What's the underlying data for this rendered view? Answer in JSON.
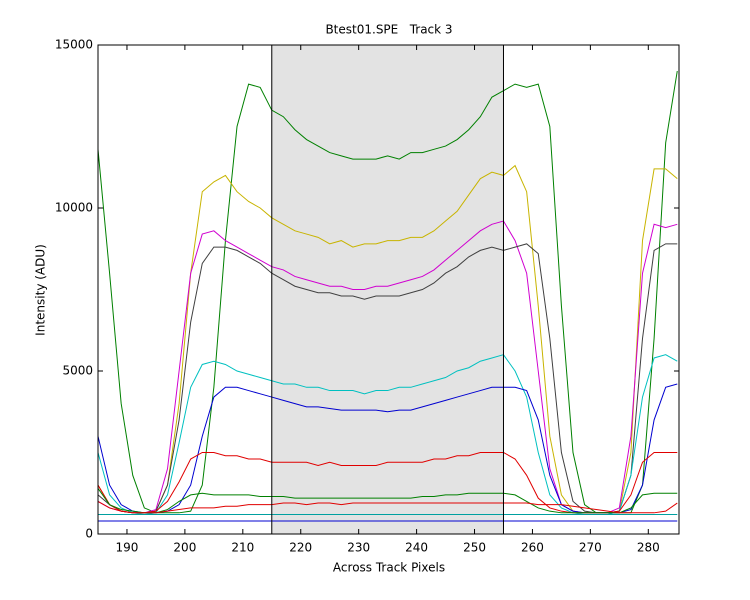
{
  "chart_data": {
    "type": "line",
    "title": "Btest01.SPE   Track 3",
    "x_label": "Across Track Pixels",
    "y_label": "Intensity (ADU)",
    "xlim": [
      185,
      285.3
    ],
    "ylim": [
      0,
      15000
    ],
    "xticks": [
      190,
      200,
      210,
      220,
      230,
      240,
      250,
      260,
      270,
      280
    ],
    "yticks": [
      0,
      5000,
      10000,
      15000
    ],
    "shaded_region": [
      215,
      255
    ],
    "shaded_color": "#e3e3e3",
    "x": [
      185,
      187,
      189,
      191,
      193,
      195,
      197,
      199,
      201,
      203,
      205,
      207,
      209,
      211,
      213,
      215,
      217,
      219,
      221,
      223,
      225,
      227,
      229,
      231,
      233,
      235,
      237,
      239,
      241,
      243,
      245,
      247,
      249,
      251,
      253,
      255,
      257,
      259,
      261,
      263,
      265,
      267,
      269,
      271,
      273,
      275,
      277,
      279,
      281,
      283,
      285
    ],
    "series": [
      {
        "color": "#008000",
        "values": [
          11800,
          8000,
          4000,
          1800,
          800,
          650,
          650,
          650,
          700,
          1500,
          4500,
          9000,
          12500,
          13800,
          13700,
          13000,
          12800,
          12400,
          12100,
          11900,
          11700,
          11600,
          11500,
          11500,
          11500,
          11600,
          11500,
          11700,
          11700,
          11800,
          11900,
          12100,
          12400,
          12800,
          13400,
          13600,
          13800,
          13700,
          13800,
          12500,
          7000,
          2500,
          900,
          650,
          650,
          650,
          650,
          1500,
          6000,
          12000,
          14200
        ]
      },
      {
        "color": "#c8b400",
        "values": [
          1500,
          900,
          700,
          650,
          650,
          700,
          1500,
          4000,
          8000,
          10500,
          10800,
          11000,
          10500,
          10200,
          10000,
          9700,
          9500,
          9300,
          9200,
          9100,
          8900,
          9000,
          8800,
          8900,
          8900,
          9000,
          9000,
          9100,
          9100,
          9300,
          9600,
          9900,
          10400,
          10900,
          11100,
          11000,
          11300,
          10500,
          7000,
          3000,
          1200,
          700,
          650,
          650,
          650,
          700,
          2500,
          9000,
          11200,
          11200,
          10900
        ]
      },
      {
        "color": "#d000d0",
        "values": [
          1000,
          800,
          700,
          650,
          650,
          750,
          2000,
          5000,
          8000,
          9200,
          9300,
          9000,
          8800,
          8600,
          8400,
          8200,
          8100,
          7900,
          7800,
          7700,
          7600,
          7600,
          7500,
          7500,
          7600,
          7600,
          7700,
          7800,
          7900,
          8100,
          8400,
          8700,
          9000,
          9300,
          9500,
          9600,
          9000,
          8000,
          5000,
          2000,
          900,
          700,
          650,
          650,
          650,
          800,
          3000,
          8000,
          9500,
          9400,
          9500
        ]
      },
      {
        "color": "#404040",
        "values": [
          1200,
          900,
          700,
          650,
          650,
          700,
          1500,
          3500,
          6500,
          8300,
          8800,
          8800,
          8700,
          8500,
          8300,
          8000,
          7800,
          7600,
          7500,
          7400,
          7400,
          7300,
          7300,
          7200,
          7300,
          7300,
          7300,
          7400,
          7500,
          7700,
          8000,
          8200,
          8500,
          8700,
          8800,
          8700,
          8800,
          8900,
          8600,
          6000,
          2500,
          1000,
          700,
          650,
          650,
          700,
          1800,
          6000,
          8700,
          8900,
          8900
        ]
      },
      {
        "color": "#00c0c0",
        "values": [
          2500,
          1200,
          800,
          650,
          600,
          650,
          1200,
          2800,
          4500,
          5200,
          5300,
          5200,
          5000,
          4900,
          4800,
          4700,
          4600,
          4600,
          4500,
          4500,
          4400,
          4400,
          4400,
          4300,
          4400,
          4400,
          4500,
          4500,
          4600,
          4700,
          4800,
          5000,
          5100,
          5300,
          5400,
          5500,
          5000,
          4200,
          2500,
          1200,
          800,
          650,
          600,
          600,
          600,
          700,
          1800,
          4200,
          5400,
          5500,
          5300
        ]
      },
      {
        "color": "#0000d0",
        "values": [
          3000,
          1500,
          900,
          700,
          650,
          650,
          700,
          900,
          1500,
          3000,
          4200,
          4500,
          4500,
          4400,
          4300,
          4200,
          4100,
          4000,
          3900,
          3900,
          3850,
          3800,
          3800,
          3800,
          3800,
          3750,
          3800,
          3800,
          3900,
          4000,
          4100,
          4200,
          4300,
          4400,
          4500,
          4500,
          4500,
          4400,
          3500,
          1800,
          900,
          700,
          650,
          650,
          650,
          650,
          750,
          1500,
          3500,
          4500,
          4600
        ]
      },
      {
        "color": "#e00000",
        "values": [
          1500,
          900,
          700,
          650,
          650,
          700,
          1000,
          1600,
          2300,
          2500,
          2500,
          2400,
          2400,
          2300,
          2300,
          2200,
          2200,
          2200,
          2200,
          2100,
          2200,
          2100,
          2100,
          2100,
          2100,
          2200,
          2200,
          2200,
          2200,
          2300,
          2300,
          2400,
          2400,
          2500,
          2500,
          2500,
          2300,
          1800,
          1100,
          800,
          700,
          650,
          650,
          650,
          650,
          700,
          1200,
          2200,
          2500,
          2500,
          2500
        ]
      },
      {
        "color": "#008000",
        "values": [
          1400,
          900,
          750,
          700,
          650,
          650,
          750,
          1000,
          1200,
          1250,
          1200,
          1200,
          1200,
          1200,
          1150,
          1150,
          1150,
          1100,
          1100,
          1100,
          1100,
          1100,
          1100,
          1100,
          1100,
          1100,
          1100,
          1100,
          1150,
          1150,
          1200,
          1200,
          1250,
          1250,
          1250,
          1250,
          1200,
          1000,
          800,
          700,
          650,
          650,
          650,
          650,
          650,
          650,
          800,
          1200,
          1250,
          1250,
          1250
        ]
      },
      {
        "color": "#e00000",
        "values": [
          1000,
          800,
          700,
          650,
          650,
          650,
          700,
          750,
          800,
          800,
          800,
          850,
          850,
          900,
          900,
          900,
          950,
          950,
          900,
          950,
          950,
          900,
          950,
          950,
          950,
          950,
          950,
          950,
          950,
          950,
          950,
          950,
          950,
          950,
          950,
          950,
          950,
          950,
          900,
          900,
          900,
          850,
          800,
          750,
          700,
          650,
          650,
          650,
          650,
          700,
          950
        ]
      },
      {
        "color": "#00a0a0",
        "values": [
          600,
          600,
          600,
          600,
          600,
          600,
          600,
          600,
          600,
          600,
          600,
          600,
          600,
          600,
          600,
          600,
          600,
          600,
          600,
          600,
          600,
          600,
          600,
          600,
          600,
          600,
          600,
          600,
          600,
          600,
          600,
          600,
          600,
          600,
          600,
          600,
          600,
          600,
          600,
          600,
          600,
          600,
          600,
          600,
          600,
          600,
          600,
          600,
          600,
          600,
          600
        ]
      },
      {
        "color": "#0000d0",
        "values": [
          400,
          400,
          400,
          400,
          400,
          400,
          400,
          400,
          400,
          400,
          400,
          400,
          400,
          400,
          400,
          400,
          400,
          400,
          400,
          400,
          400,
          400,
          400,
          400,
          400,
          400,
          400,
          400,
          400,
          400,
          400,
          400,
          400,
          400,
          400,
          400,
          400,
          400,
          400,
          400,
          400,
          400,
          400,
          400,
          400,
          400,
          400,
          400,
          400,
          400,
          400
        ]
      }
    ]
  }
}
